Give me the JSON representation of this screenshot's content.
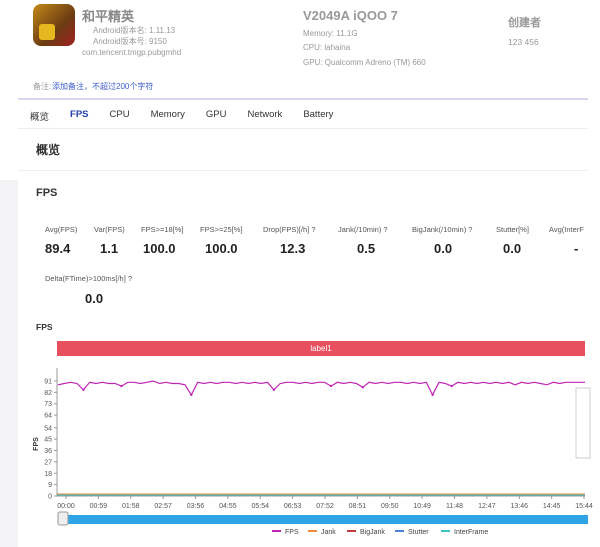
{
  "app": {
    "title": "和平精英",
    "version_name": "Android版本名: 1.11.13",
    "version_code": "Android版本号: 9150",
    "package": "com.tencent.tmgp.pubgmhd",
    "icon": "app-icon"
  },
  "device": {
    "title": "V2049A iQOO 7",
    "memory": "Memory: 11.1G",
    "cpu": "CPU: lahaina",
    "gpu": "GPU: Qualcomm Adreno (TM) 660"
  },
  "creator": {
    "label": "创建者",
    "value": "123 456"
  },
  "note": {
    "label": "备注:",
    "link": "添加备注，不超过200个字符"
  },
  "tabs": [
    {
      "label": "概览"
    },
    {
      "label": "FPS",
      "active": true
    },
    {
      "label": "CPU"
    },
    {
      "label": "Memory"
    },
    {
      "label": "GPU"
    },
    {
      "label": "Network"
    },
    {
      "label": "Battery"
    }
  ],
  "overview": {
    "title": "概览"
  },
  "fps_section": {
    "title": "FPS",
    "metrics": [
      {
        "label": "Avg(FPS)",
        "value": "89.4"
      },
      {
        "label": "Var(FPS)",
        "value": "1.1"
      },
      {
        "label": "FPS>=18[%]",
        "value": "100.0"
      },
      {
        "label": "FPS>=25[%]",
        "value": "100.0"
      },
      {
        "label": "Drop(FPS)[/h] ?",
        "value": "12.3"
      },
      {
        "label": "Jank(/10min) ?",
        "value": "0.5"
      },
      {
        "label": "BigJank(/10min) ?",
        "value": "0.0"
      },
      {
        "label": "Stutter[%]",
        "value": "0.0"
      },
      {
        "label": "Avg(InterF",
        "value": "-"
      }
    ],
    "metric2": {
      "label": "Delta(FTime)>100ms[/h] ?",
      "value": "0.0"
    }
  },
  "chart_data": {
    "type": "line",
    "title": "FPS",
    "ylabel": "FPS",
    "band_label": "label1",
    "ylim": [
      0,
      91
    ],
    "yticks": [
      "0",
      "9",
      "18",
      "27",
      "36",
      "45",
      "54",
      "64",
      "73",
      "82",
      "91"
    ],
    "xticks": [
      "00:00",
      "00:59",
      "01:58",
      "02:57",
      "03:56",
      "04:55",
      "05:54",
      "06:53",
      "07:52",
      "08:51",
      "09:50",
      "10:49",
      "11:48",
      "12:47",
      "13:46",
      "14:45",
      "15:44"
    ],
    "grid": false,
    "legend_position": "bottom",
    "series": [
      {
        "name": "FPS",
        "color": "#c026b4",
        "values": [
          88,
          89,
          90,
          89,
          84,
          90,
          89,
          90,
          89,
          89,
          87,
          90,
          90,
          89,
          90,
          91,
          89,
          90,
          89,
          89,
          88,
          80,
          90,
          89,
          90,
          89,
          90,
          90,
          89,
          90,
          89,
          90,
          89,
          90,
          84,
          89,
          90,
          90,
          89,
          90,
          89,
          90,
          90,
          87,
          90,
          89,
          90,
          89,
          86,
          90,
          89,
          90,
          89,
          90,
          90,
          89,
          90,
          89,
          90,
          80,
          90,
          89,
          87,
          90,
          89,
          90,
          89,
          90,
          89,
          90,
          89,
          90,
          88,
          90,
          89,
          90,
          89,
          88,
          90,
          89,
          90,
          90,
          90,
          90
        ]
      },
      {
        "name": "Jank",
        "color": "#f08a3c",
        "values": [
          0
        ]
      },
      {
        "name": "BigJank",
        "color": "#c23b3b",
        "values": [
          0
        ]
      },
      {
        "name": "Stutter",
        "color": "#4a7fd8",
        "values": [
          0
        ]
      },
      {
        "name": "InterFrame",
        "color": "#3cc4c4",
        "values": [
          0
        ]
      }
    ]
  }
}
